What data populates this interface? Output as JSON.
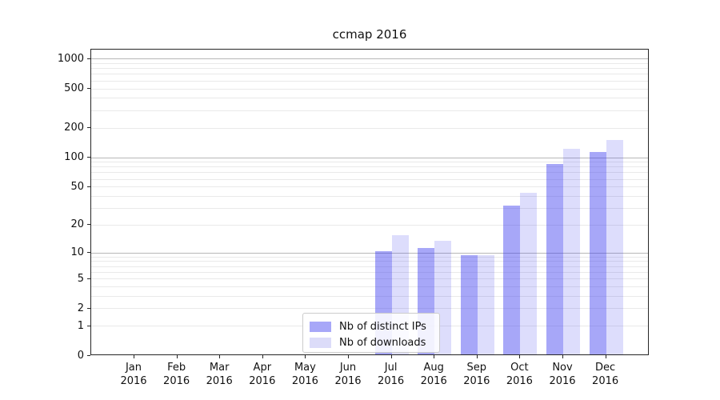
{
  "title": "ccmap 2016",
  "colors": {
    "background": "#ffffff",
    "spine": "#262626",
    "grid_major": "#b8b8b8",
    "grid_minor": "#e9e9e9",
    "text": "#111111",
    "legend_border": "#cccccc",
    "bar_dark": "#a9a9f8",
    "bar_light": "#dcdcf8"
  },
  "chart_data": {
    "type": "bar",
    "title": "ccmap 2016",
    "x_categories": [
      {
        "month": "Jan",
        "year": "2016"
      },
      {
        "month": "Feb",
        "year": "2016"
      },
      {
        "month": "Mar",
        "year": "2016"
      },
      {
        "month": "Apr",
        "year": "2016"
      },
      {
        "month": "May",
        "year": "2016"
      },
      {
        "month": "Jun",
        "year": "2016"
      },
      {
        "month": "Jul",
        "year": "2016"
      },
      {
        "month": "Aug",
        "year": "2016"
      },
      {
        "month": "Sep",
        "year": "2016"
      },
      {
        "month": "Oct",
        "year": "2016"
      },
      {
        "month": "Nov",
        "year": "2016"
      },
      {
        "month": "Dec",
        "year": "2016"
      }
    ],
    "series": [
      {
        "name": "Nb of distinct IPs",
        "swatch": "#a7a7f8",
        "fill": "rgba(55,55,240,0.44)",
        "values": [
          0,
          0,
          0,
          0,
          0,
          0,
          10,
          11,
          9,
          31,
          83,
          110
        ]
      },
      {
        "name": "Nb of downloads",
        "swatch": "#dcdcf9",
        "fill": "rgba(55,55,240,0.17)",
        "values": [
          0,
          0,
          0,
          0,
          0,
          0,
          15,
          13,
          9,
          42,
          119,
          147
        ]
      }
    ],
    "y_axis": {
      "scale": "log1p",
      "ticks": [
        0,
        1,
        2,
        5,
        10,
        20,
        50,
        100,
        200,
        500,
        1000
      ],
      "ylim": [
        0,
        1250
      ],
      "major_gridlines": [
        10,
        100,
        1000
      ],
      "minor_gridlines": [
        1,
        2,
        3,
        4,
        5,
        6,
        7,
        8,
        9,
        20,
        30,
        40,
        50,
        60,
        70,
        80,
        90,
        200,
        300,
        400,
        500,
        600,
        700,
        800,
        900
      ]
    },
    "legend_position": "lower-center",
    "grid": true
  }
}
